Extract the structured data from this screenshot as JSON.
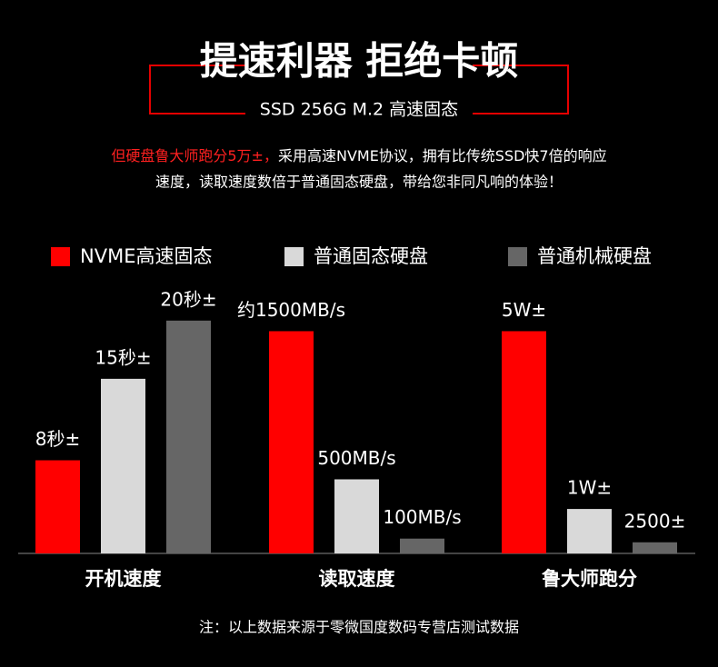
{
  "header": {
    "title": "提速利器 拒绝卡顿",
    "subtitle": "SSD 256G M.2 高速固态",
    "highlight": "但硬盘鲁大师跑分5万±，",
    "description": [
      "采用高速NVME协议，拥有比传统SSD快7倍的响应",
      "速度，读取速度数倍于普通固态硬盘，带给您非同凡响的体验！"
    ]
  },
  "chart_data": {
    "type": "bar",
    "categories": [
      "开机速度",
      "读取速度",
      "鲁大师跑分"
    ],
    "ylims": [
      [
        0,
        21
      ],
      [
        0,
        1650
      ],
      [
        0,
        55000
      ]
    ],
    "series": [
      {
        "name": "NVME高速固态",
        "color": "#ff0000",
        "label_color": "#ff2020",
        "values": [
          8,
          1500,
          50000
        ],
        "value_labels": [
          "8秒±",
          "约1500MB/s",
          "5W±"
        ]
      },
      {
        "name": "普通固态硬盘",
        "color": "#d9d9d9",
        "label_color": "#ffffff",
        "values": [
          15,
          500,
          10000
        ],
        "value_labels": [
          "15秒±",
          "500MB/s",
          "1W±"
        ]
      },
      {
        "name": "普通机械硬盘",
        "color": "#666666",
        "label_color": "#ffffff",
        "values": [
          20,
          100,
          2500
        ],
        "value_labels": [
          "20秒±",
          "100MB/s",
          "2500±"
        ]
      }
    ]
  },
  "footnote": "注：以上数据来源于零微国度数码专营店测试数据"
}
